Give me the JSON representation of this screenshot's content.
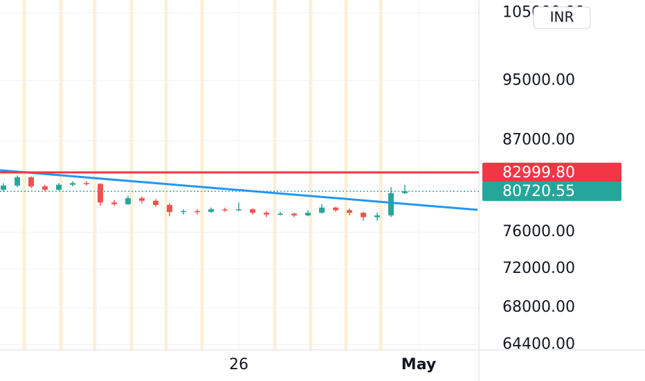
{
  "chart_data": {
    "type": "candlestick",
    "x": [
      0,
      1,
      2,
      3,
      4,
      5,
      6,
      7,
      8,
      9,
      10,
      11,
      12,
      13,
      14,
      15,
      16,
      17,
      18,
      19,
      20,
      21,
      22,
      23,
      24,
      25,
      26,
      27,
      28,
      29
    ],
    "open": [
      80900,
      81400,
      82400,
      81300,
      80900,
      81500,
      81700,
      81600,
      79400,
      79200,
      79900,
      79600,
      79100,
      78300,
      78400,
      78300,
      78600,
      78500,
      78600,
      78200,
      78000,
      78100,
      77900,
      78200,
      78800,
      78500,
      78200,
      77700,
      77900,
      80500
    ],
    "high": [
      81700,
      82600,
      82500,
      81500,
      81700,
      81900,
      81900,
      81700,
      79700,
      80200,
      80100,
      79800,
      79300,
      78600,
      78600,
      78800,
      78800,
      79400,
      78700,
      78400,
      78300,
      78200,
      78500,
      79200,
      78900,
      78700,
      78300,
      78200,
      81200,
      81500
    ],
    "low": [
      80700,
      81200,
      81100,
      80700,
      80800,
      81300,
      81400,
      79000,
      79000,
      79100,
      79300,
      78900,
      77800,
      78000,
      78000,
      78200,
      78300,
      78400,
      78000,
      77700,
      77900,
      77700,
      77800,
      78100,
      78300,
      77900,
      77300,
      77300,
      77700,
      80400
    ],
    "close": [
      81400,
      82400,
      81300,
      80900,
      81500,
      81700,
      81600,
      79400,
      79200,
      79900,
      79600,
      79100,
      78300,
      78400,
      78300,
      78600,
      78500,
      78600,
      78200,
      78000,
      78100,
      77900,
      78200,
      78800,
      78500,
      78200,
      77700,
      77900,
      80500,
      80720.55
    ],
    "up_color": "#26a69a",
    "down_color": "#ef5350",
    "xlim": [
      -0.25,
      34.25
    ],
    "xticks": [
      {
        "value": 17,
        "label": "26"
      },
      {
        "value": 30,
        "label": "May"
      }
    ],
    "ylim": [
      63900,
      107000
    ],
    "log_scale": true,
    "yticks": [
      {
        "value": 64400,
        "label": "64400.00"
      },
      {
        "value": 68000,
        "label": "68000.00"
      },
      {
        "value": 72000,
        "label": "72000.00"
      },
      {
        "value": 76000,
        "label": "76000.00"
      },
      {
        "value": 87000,
        "label": "87000.00"
      },
      {
        "value": 95000,
        "label": "95000.00"
      },
      {
        "value": 105000,
        "label": "105000.00"
      }
    ],
    "grid": true,
    "currency": "INR",
    "horizontal_lines": [
      {
        "value": 82999.8,
        "label": "82999.80",
        "color": "#f23645",
        "style": "solid"
      },
      {
        "value": 80720.55,
        "label": "80720.55",
        "color": "#26a69a",
        "style": "dotted"
      }
    ],
    "trendline": {
      "x": [
        -0.25,
        34.25
      ],
      "y": [
        83256,
        78540
      ],
      "color": "#2196f3"
    }
  }
}
